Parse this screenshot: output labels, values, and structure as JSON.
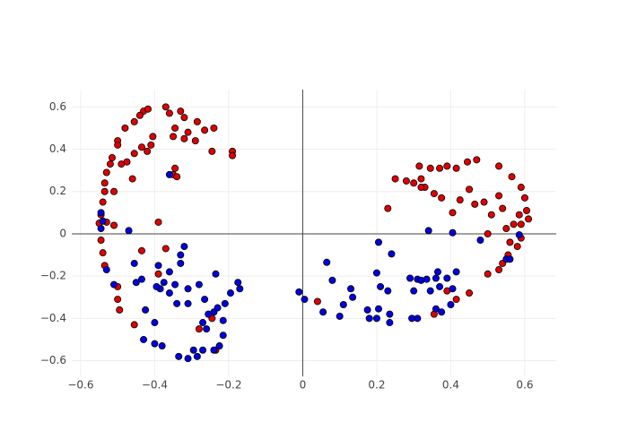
{
  "chart_data": {
    "type": "scatter",
    "xlim": [
      -0.624,
      0.685
    ],
    "ylim": [
      -0.674,
      0.682
    ],
    "xticks": [
      {
        "value": -0.6,
        "label": "−0.6"
      },
      {
        "value": -0.4,
        "label": "−0.4"
      },
      {
        "value": -0.2,
        "label": "−0.2"
      },
      0,
      0.2,
      0.4,
      0.6
    ],
    "yticks": [
      {
        "value": -0.6,
        "label": "−0.6"
      },
      {
        "value": -0.4,
        "label": "−0.4"
      },
      {
        "value": -0.2,
        "label": "−0.2"
      },
      0,
      0.2,
      0.4,
      0.6
    ],
    "grid": true,
    "zeroline": true,
    "series": [
      {
        "color": "#e00000",
        "x": [
          -0.43,
          -0.418,
          -0.37,
          -0.36,
          -0.32,
          -0.33,
          -0.44,
          -0.455,
          -0.48,
          -0.5,
          -0.5,
          -0.515,
          -0.52,
          -0.53,
          -0.535,
          -0.535,
          -0.54,
          -0.545,
          -0.55,
          -0.545,
          -0.54,
          -0.535,
          -0.5,
          -0.5,
          -0.495,
          -0.455,
          -0.435,
          -0.39,
          -0.39,
          -0.49,
          -0.475,
          -0.455,
          -0.435,
          -0.42,
          -0.41,
          -0.405,
          -0.35,
          -0.345,
          -0.31,
          -0.285,
          -0.265,
          -0.24,
          -0.29,
          -0.32,
          -0.46,
          -0.51,
          -0.345,
          -0.35,
          -0.34,
          -0.245,
          -0.19,
          -0.19,
          -0.37,
          -0.28,
          -0.245,
          -0.235,
          -0.51,
          -0.53,
          0.23,
          0.25,
          0.28,
          0.315,
          0.345,
          0.37,
          0.39,
          0.415,
          0.445,
          0.47,
          0.53,
          0.565,
          0.59,
          0.6,
          0.605,
          0.61,
          0.59,
          0.58,
          0.555,
          0.54,
          0.53,
          0.5,
          0.45,
          0.415,
          0.39,
          0.355,
          0.04,
          0.32,
          0.33,
          0.355,
          0.375,
          0.405,
          0.425,
          0.45,
          0.465,
          0.49,
          0.51,
          0.53,
          0.54,
          0.55,
          0.57,
          0.59,
          0.585,
          0.5,
          0.56,
          0.3,
          0.32
        ],
        "values": [
          0.58,
          0.59,
          0.6,
          0.57,
          0.55,
          0.58,
          0.56,
          0.53,
          0.5,
          0.44,
          0.42,
          0.36,
          0.33,
          0.29,
          0.24,
          0.2,
          0.15,
          0.09,
          0.05,
          -0.03,
          -0.09,
          -0.15,
          -0.25,
          -0.31,
          -0.36,
          -0.43,
          -0.08,
          -0.19,
          0.055,
          0.33,
          0.34,
          0.38,
          0.41,
          0.39,
          0.42,
          0.46,
          0.46,
          0.5,
          0.48,
          0.53,
          0.49,
          0.5,
          0.44,
          0.45,
          0.26,
          0.2,
          0.31,
          0.28,
          0.27,
          0.39,
          0.39,
          0.37,
          -0.07,
          -0.45,
          -0.4,
          -0.55,
          0.04,
          0.055,
          0.12,
          0.26,
          0.25,
          0.32,
          0.31,
          0.31,
          0.32,
          0.31,
          0.34,
          0.35,
          0.32,
          0.27,
          0.22,
          0.17,
          0.11,
          0.07,
          -0.02,
          -0.06,
          -0.1,
          -0.14,
          -0.17,
          -0.19,
          -0.28,
          -0.31,
          -0.27,
          -0.38,
          -0.32,
          0.26,
          0.22,
          0.19,
          0.17,
          0.1,
          0.16,
          0.21,
          0.14,
          0.15,
          0.09,
          0.18,
          0.12,
          0.025,
          0.045,
          0.045,
          0.09,
          0,
          -0.04,
          0.24,
          0.22
        ]
      },
      {
        "color": "#0000e0",
        "x": [
          -0.36,
          -0.545,
          -0.545,
          -0.47,
          -0.53,
          -0.51,
          -0.455,
          -0.45,
          -0.435,
          -0.39,
          -0.36,
          -0.375,
          -0.385,
          -0.395,
          -0.36,
          -0.345,
          -0.32,
          -0.33,
          -0.33,
          -0.31,
          -0.28,
          -0.235,
          -0.34,
          -0.31,
          -0.425,
          -0.4,
          -0.43,
          -0.4,
          -0.38,
          -0.335,
          -0.31,
          -0.285,
          -0.295,
          -0.27,
          -0.24,
          -0.225,
          -0.215,
          -0.26,
          -0.27,
          -0.255,
          -0.24,
          -0.23,
          -0.21,
          -0.215,
          -0.195,
          -0.175,
          -0.17,
          -0.265,
          -0.54,
          -0.01,
          0.005,
          0.065,
          0.08,
          0.055,
          0.1,
          0.11,
          0.13,
          0.135,
          0.175,
          0.18,
          0.2,
          0.205,
          0.205,
          0.2,
          0.21,
          0.23,
          0.235,
          0.235,
          0.24,
          0.29,
          0.3,
          0.31,
          0.32,
          0.335,
          0.34,
          0.345,
          0.36,
          0.365,
          0.37,
          0.39,
          0.405,
          0.405,
          0.4,
          0.415,
          0.375,
          0.295,
          0.31,
          0.36,
          0.48,
          0.55,
          0.56,
          0.585
        ],
        "values": [
          0.28,
          0.1,
          0.025,
          0.015,
          -0.17,
          -0.24,
          -0.14,
          -0.23,
          -0.215,
          -0.15,
          -0.18,
          -0.23,
          -0.26,
          -0.25,
          -0.28,
          -0.24,
          -0.06,
          -0.1,
          -0.14,
          -0.26,
          -0.24,
          -0.19,
          -0.33,
          -0.33,
          -0.36,
          -0.42,
          -0.5,
          -0.52,
          -0.53,
          -0.58,
          -0.59,
          -0.58,
          -0.55,
          -0.55,
          -0.55,
          -0.53,
          -0.48,
          -0.45,
          -0.42,
          -0.38,
          -0.37,
          -0.35,
          -0.33,
          -0.41,
          -0.28,
          -0.23,
          -0.26,
          -0.31,
          0.06,
          -0.275,
          -0.31,
          -0.135,
          -0.22,
          -0.37,
          -0.39,
          -0.335,
          -0.26,
          -0.3,
          -0.36,
          -0.4,
          -0.4,
          -0.355,
          -0.04,
          -0.185,
          -0.25,
          -0.27,
          -0.38,
          -0.42,
          -0.095,
          -0.21,
          -0.27,
          -0.215,
          -0.22,
          -0.215,
          0.015,
          -0.27,
          -0.21,
          -0.18,
          -0.25,
          -0.21,
          0.005,
          -0.26,
          -0.335,
          -0.18,
          -0.37,
          -0.4,
          -0.4,
          -0.355,
          -0.03,
          -0.12,
          -0.12,
          -0.005
        ]
      }
    ]
  }
}
